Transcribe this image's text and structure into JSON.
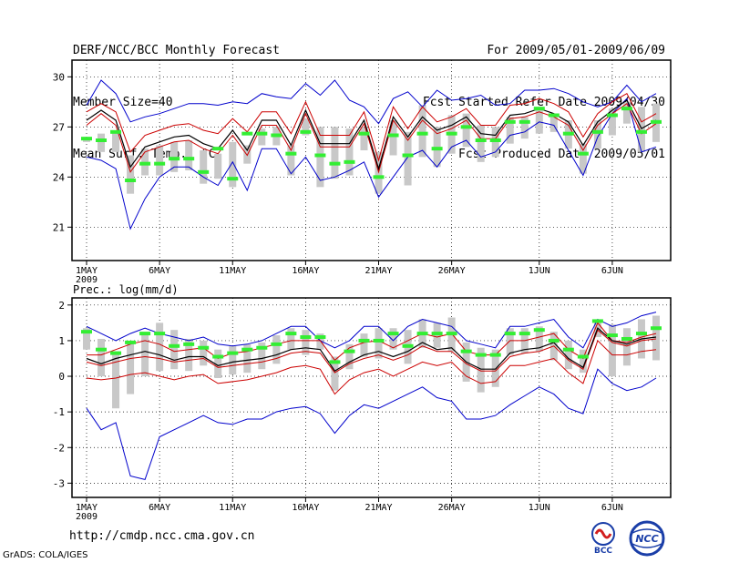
{
  "header": {
    "title": "DERF/NCC/BCC Monthly Forecast",
    "member_size": "Member Size=40",
    "variable": "Mean Surf. Temp.: °C",
    "period": "For 2009/05/01-2009/06/09",
    "started_refer": "Fcst Started Refer Date 2009/04/30",
    "produced": "Fcst Produced Date 2009/05/01"
  },
  "footer": {
    "url": "http://cmdp.ncc.cma.gov.cn",
    "grads": "GrADS: COLA/IGES",
    "logo_bcc": "BCC",
    "logo_ncc": "NCC"
  },
  "colors": {
    "envelope": "#0000cc",
    "inner_band": "#cc0000",
    "mean": "#000000",
    "observed": "#33ee33",
    "box": "#c8c8c8",
    "grid": "#000000"
  },
  "chart_data": [
    {
      "type": "line",
      "title": "Mean Surf. Temp.: °C",
      "ylim": [
        19,
        31
      ],
      "yticks": [
        21,
        24,
        27,
        30
      ],
      "xticks": [
        1,
        6,
        11,
        16,
        21,
        26,
        32,
        37
      ],
      "xtick_labels": [
        "1MAY",
        "6MAY",
        "11MAY",
        "16MAY",
        "21MAY",
        "26MAY",
        "1JUN",
        "6JUN"
      ],
      "year_label": "2009",
      "days": 40,
      "series": [
        {
          "name": "max",
          "values": [
            28.3,
            29.8,
            29.0,
            27.3,
            27.6,
            27.8,
            28.1,
            28.4,
            28.4,
            28.3,
            28.5,
            28.4,
            29.0,
            28.8,
            28.7,
            29.6,
            28.9,
            29.8,
            28.6,
            28.2,
            27.2,
            28.7,
            29.1,
            28.2,
            29.2,
            28.6,
            28.7,
            28.9,
            28.3,
            28.4,
            29.2,
            29.2,
            29.3,
            29.0,
            28.5,
            28.2,
            28.5,
            29.5,
            28.5,
            29.0
          ]
        },
        {
          "name": "upper",
          "values": [
            27.9,
            28.4,
            27.9,
            25.5,
            26.5,
            26.8,
            27.1,
            27.2,
            26.8,
            26.6,
            27.5,
            26.7,
            27.9,
            27.9,
            26.6,
            28.5,
            26.5,
            26.5,
            26.5,
            27.9,
            25.0,
            28.2,
            26.9,
            28.2,
            27.3,
            27.6,
            28.1,
            27.1,
            27.1,
            28.3,
            28.4,
            28.7,
            28.4,
            27.9,
            26.4,
            27.8,
            28.5,
            29.0,
            27.3,
            27.8
          ]
        },
        {
          "name": "mean",
          "values": [
            27.4,
            28.0,
            27.4,
            24.6,
            25.8,
            26.1,
            26.4,
            26.5,
            26.0,
            25.7,
            26.8,
            25.6,
            27.4,
            27.4,
            25.9,
            28.0,
            26.0,
            26.0,
            26.0,
            27.4,
            24.5,
            27.6,
            26.4,
            27.6,
            26.8,
            27.1,
            27.6,
            26.6,
            26.5,
            27.7,
            27.8,
            28.1,
            27.8,
            27.3,
            25.9,
            27.3,
            28.0,
            28.6,
            26.9,
            27.4
          ]
        },
        {
          "name": "lower",
          "values": [
            27.1,
            27.8,
            27.1,
            24.3,
            25.5,
            25.8,
            26.1,
            26.2,
            25.7,
            25.4,
            26.5,
            25.3,
            27.1,
            27.1,
            25.6,
            27.8,
            25.8,
            25.8,
            25.8,
            27.2,
            24.3,
            27.4,
            26.2,
            27.4,
            26.6,
            26.9,
            27.4,
            26.3,
            26.3,
            27.5,
            27.6,
            27.9,
            27.6,
            27.1,
            25.6,
            27.1,
            27.8,
            28.4,
            26.6,
            27.2
          ]
        },
        {
          "name": "min",
          "values": [
            25.2,
            25.0,
            24.5,
            20.9,
            22.7,
            24.0,
            24.6,
            24.6,
            24.0,
            23.5,
            24.9,
            23.2,
            25.7,
            25.7,
            24.2,
            25.2,
            23.8,
            24.0,
            24.4,
            24.9,
            22.8,
            24.0,
            25.2,
            25.6,
            24.6,
            25.8,
            26.2,
            25.2,
            25.5,
            26.5,
            26.7,
            27.3,
            27.1,
            25.6,
            24.1,
            26.4,
            27.8,
            28.7,
            25.5,
            25.8
          ]
        },
        {
          "name": "observed",
          "values": [
            26.3,
            26.2,
            26.7,
            23.8,
            24.8,
            24.8,
            25.1,
            25.1,
            24.3,
            25.7,
            23.9,
            26.6,
            26.6,
            26.5,
            25.4,
            26.7,
            25.3,
            24.8,
            24.9,
            26.6,
            24.0,
            26.5,
            25.3,
            26.6,
            25.7,
            26.6,
            27.0,
            26.2,
            26.2,
            27.3,
            27.3,
            28.1,
            27.7,
            26.6,
            25.4,
            26.7,
            27.7,
            28.1,
            26.7,
            27.3
          ]
        },
        {
          "name": "box_high",
          "values": [
            26.4,
            26.6,
            26.7,
            25.3,
            25.7,
            25.9,
            26.1,
            26.2,
            25.6,
            25.4,
            26.1,
            25.9,
            26.9,
            27.0,
            25.9,
            27.5,
            27.0,
            27.0,
            26.9,
            27.0,
            25.5,
            27.4,
            26.7,
            28.3,
            27.0,
            27.7,
            27.8,
            27.1,
            27.0,
            27.6,
            27.6,
            28.1,
            27.8,
            27.4,
            26.0,
            27.4,
            28.1,
            28.5,
            28.2,
            28.4
          ]
        },
        {
          "name": "box_low",
          "values": [
            26.1,
            25.5,
            25.5,
            23.0,
            24.1,
            24.1,
            24.3,
            24.4,
            23.6,
            23.9,
            23.4,
            24.8,
            25.9,
            25.9,
            24.1,
            26.5,
            23.4,
            23.9,
            24.1,
            25.6,
            23.0,
            25.3,
            23.5,
            25.2,
            24.6,
            25.4,
            25.8,
            24.9,
            25.2,
            26.0,
            26.3,
            26.6,
            26.7,
            25.7,
            24.2,
            25.7,
            26.5,
            27.2,
            25.5,
            26.1
          ]
        }
      ]
    },
    {
      "type": "line",
      "title": "Prec.: log(mm/d)",
      "ylim": [
        -3.4,
        2.2
      ],
      "yticks": [
        -3,
        -2,
        -1,
        0,
        1,
        2
      ],
      "xticks": [
        1,
        6,
        11,
        16,
        21,
        26,
        32,
        37
      ],
      "xtick_labels": [
        "1MAY",
        "6MAY",
        "11MAY",
        "16MAY",
        "21MAY",
        "26MAY",
        "1JUN",
        "6JUN"
      ],
      "year_label": "2009",
      "days": 40,
      "series": [
        {
          "name": "max",
          "values": [
            1.4,
            1.2,
            1.0,
            1.2,
            1.35,
            1.2,
            1.1,
            1.0,
            1.1,
            0.9,
            0.85,
            0.9,
            1.0,
            1.2,
            1.4,
            1.4,
            1.0,
            0.8,
            1.0,
            1.4,
            1.4,
            1.0,
            1.4,
            1.6,
            1.5,
            1.4,
            1.0,
            0.9,
            0.8,
            1.4,
            1.4,
            1.5,
            1.6,
            1.1,
            0.8,
            1.6,
            1.4,
            1.5,
            1.7,
            1.8
          ]
        },
        {
          "name": "upper",
          "values": [
            0.6,
            0.6,
            0.75,
            0.9,
            1.0,
            0.9,
            0.7,
            0.75,
            0.8,
            0.5,
            0.65,
            0.7,
            0.8,
            0.9,
            1.0,
            1.0,
            1.0,
            0.45,
            0.8,
            0.95,
            1.0,
            0.8,
            1.0,
            1.2,
            1.1,
            1.2,
            0.7,
            0.6,
            0.6,
            1.0,
            1.0,
            1.1,
            1.2,
            0.75,
            0.5,
            1.5,
            1.0,
            0.95,
            1.1,
            1.2
          ]
        },
        {
          "name": "mean",
          "values": [
            0.5,
            0.35,
            0.5,
            0.6,
            0.7,
            0.6,
            0.45,
            0.55,
            0.55,
            0.3,
            0.4,
            0.45,
            0.5,
            0.6,
            0.75,
            0.8,
            0.75,
            0.15,
            0.4,
            0.6,
            0.7,
            0.55,
            0.7,
            0.95,
            0.75,
            0.8,
            0.4,
            0.2,
            0.2,
            0.65,
            0.75,
            0.8,
            0.95,
            0.5,
            0.25,
            1.35,
            1.0,
            0.9,
            1.05,
            1.1
          ]
        },
        {
          "name": "lower",
          "values": [
            0.4,
            0.3,
            0.4,
            0.5,
            0.55,
            0.5,
            0.4,
            0.45,
            0.5,
            0.25,
            0.3,
            0.35,
            0.4,
            0.5,
            0.65,
            0.7,
            0.65,
            0.1,
            0.35,
            0.5,
            0.6,
            0.45,
            0.6,
            0.85,
            0.7,
            0.7,
            0.35,
            0.15,
            0.15,
            0.55,
            0.65,
            0.7,
            0.85,
            0.45,
            0.2,
            1.3,
            0.95,
            0.85,
            1.0,
            1.05
          ]
        },
        {
          "name": "lower_red",
          "values": [
            -0.05,
            -0.1,
            -0.05,
            0.05,
            0.1,
            0.0,
            -0.1,
            0.0,
            0.05,
            -0.2,
            -0.15,
            -0.1,
            0.0,
            0.1,
            0.25,
            0.3,
            0.2,
            -0.5,
            -0.1,
            0.1,
            0.2,
            0.0,
            0.2,
            0.4,
            0.3,
            0.4,
            0.0,
            -0.2,
            -0.15,
            0.3,
            0.3,
            0.4,
            0.5,
            0.1,
            -0.2,
            1.0,
            0.6,
            0.6,
            0.7,
            0.75
          ]
        },
        {
          "name": "min",
          "values": [
            -0.9,
            -1.5,
            -1.3,
            -2.8,
            -2.9,
            -1.7,
            -1.5,
            -1.3,
            -1.1,
            -1.3,
            -1.35,
            -1.2,
            -1.2,
            -1.0,
            -0.9,
            -0.85,
            -1.05,
            -1.6,
            -1.1,
            -0.8,
            -0.9,
            -0.7,
            -0.5,
            -0.3,
            -0.6,
            -0.7,
            -1.2,
            -1.2,
            -1.1,
            -0.8,
            -0.55,
            -0.3,
            -0.5,
            -0.9,
            -1.05,
            0.2,
            -0.2,
            -0.4,
            -0.3,
            -0.05
          ]
        },
        {
          "name": "observed",
          "values": [
            1.25,
            0.75,
            0.65,
            0.95,
            1.2,
            1.2,
            0.85,
            0.9,
            0.8,
            0.55,
            0.65,
            0.75,
            0.8,
            0.9,
            1.2,
            1.1,
            1.1,
            0.4,
            0.7,
            1.0,
            1.0,
            1.2,
            0.85,
            1.2,
            1.2,
            1.2,
            0.7,
            0.6,
            0.6,
            1.2,
            1.2,
            1.3,
            1.0,
            0.75,
            0.55,
            1.55,
            1.15,
            1.05,
            1.2,
            1.35
          ]
        },
        {
          "name": "box_high",
          "values": [
            1.35,
            1.05,
            0.7,
            1.0,
            1.2,
            1.5,
            1.3,
            1.05,
            1.0,
            0.75,
            0.85,
            0.9,
            0.95,
            1.15,
            1.35,
            1.3,
            1.2,
            0.55,
            0.9,
            1.2,
            1.35,
            1.35,
            1.3,
            1.6,
            1.5,
            1.65,
            0.95,
            0.8,
            0.75,
            1.35,
            1.35,
            1.4,
            1.25,
            1.0,
            0.75,
            1.6,
            1.45,
            1.35,
            1.6,
            1.7
          ]
        },
        {
          "name": "box_low",
          "values": [
            0.75,
            0.0,
            -0.9,
            -0.5,
            0.0,
            0.15,
            0.2,
            0.15,
            0.3,
            -0.05,
            0.05,
            0.1,
            0.2,
            0.35,
            0.75,
            0.6,
            0.75,
            -0.4,
            0.2,
            0.55,
            0.5,
            0.75,
            0.35,
            0.8,
            0.8,
            0.7,
            -0.15,
            -0.45,
            -0.3,
            0.6,
            0.65,
            0.7,
            0.45,
            0.2,
            0.1,
            1.1,
            0.0,
            0.3,
            0.5,
            0.45
          ]
        }
      ]
    }
  ]
}
